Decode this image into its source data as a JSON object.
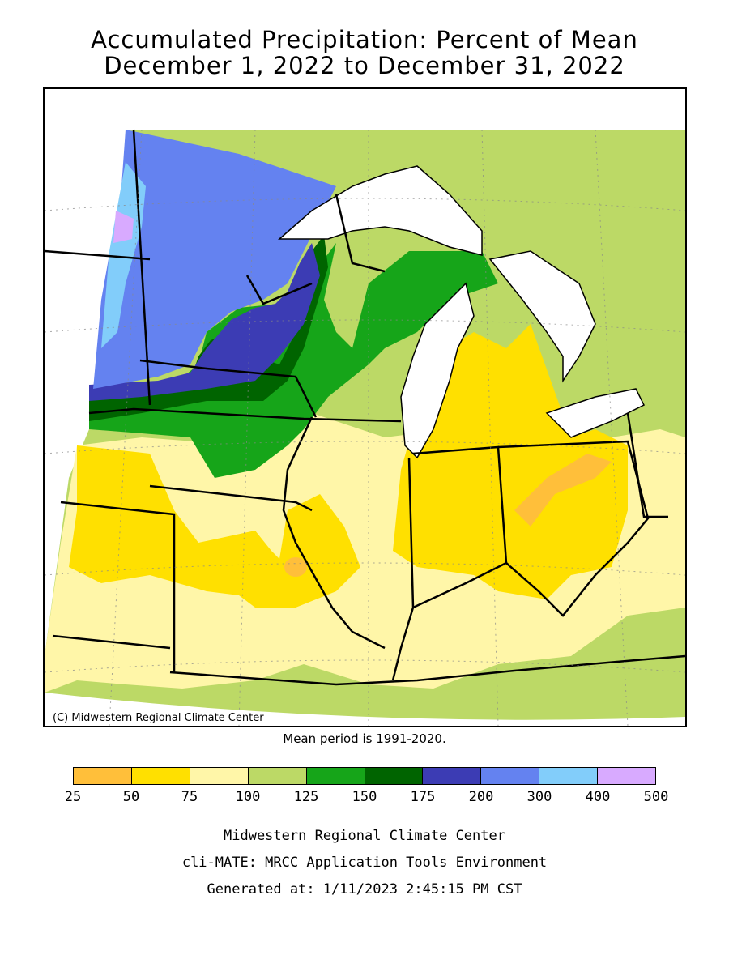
{
  "title_line1": "Accumulated Precipitation: Percent of Mean",
  "title_line2": "December 1, 2022 to December 31, 2022",
  "credit": "(C) Midwestern Regional Climate Center",
  "mean_period": "Mean period is 1991-2020.",
  "legend": {
    "ticks": [
      "25",
      "50",
      "75",
      "100",
      "125",
      "150",
      "175",
      "200",
      "300",
      "400",
      "500"
    ],
    "colors": [
      "#ffbf3a",
      "#ffe000",
      "#fff6a8",
      "#bcd966",
      "#16a519",
      "#006400",
      "#3c3cb4",
      "#6482f0",
      "#82cdfa",
      "#d8aaff"
    ]
  },
  "footer": {
    "line1": "Midwestern Regional Climate Center",
    "line2": "cli-MATE: MRCC Application Tools Environment",
    "line3": "Generated at: 1/11/2023 2:45:15 PM CST"
  }
}
